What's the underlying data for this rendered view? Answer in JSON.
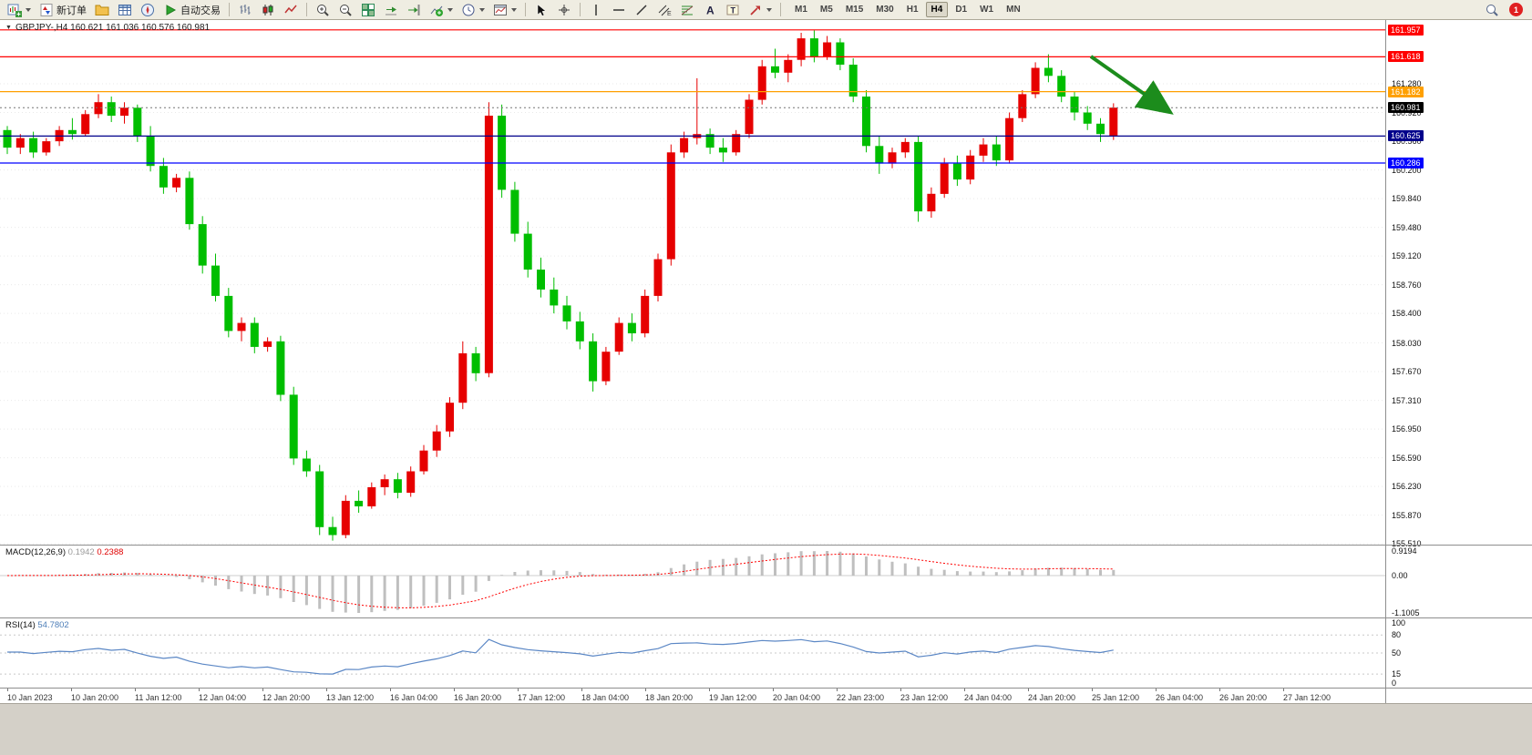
{
  "toolbar": {
    "new_order_label": "新订单",
    "autotrading_label": "自动交易",
    "timeframes": [
      "M1",
      "M5",
      "M15",
      "M30",
      "H1",
      "H4",
      "D1",
      "W1",
      "MN"
    ],
    "active_timeframe": "H4",
    "notification_count": "1",
    "icon_names": [
      "new-chart-icon",
      "new-order-icon",
      "chart-profiles-icon",
      "market-watch-icon",
      "navigator-icon",
      "autotrading-icon",
      "bar-chart-icon",
      "candlestick-chart-icon",
      "line-chart-icon",
      "zoom-in-icon",
      "zoom-out-icon",
      "tile-windows-icon",
      "auto-scroll-icon",
      "chart-shift-icon",
      "indicators-icon",
      "periods-icon",
      "templates-icon",
      "cursor-icon",
      "crosshair-icon",
      "vertical-line-icon",
      "horizontal-line-icon",
      "trendline-icon",
      "equidistant-channel-icon",
      "fibonacci-icon",
      "text-icon",
      "text-label-icon",
      "arrows-icon",
      "search-icon",
      "notification-badge"
    ]
  },
  "chart_data": {
    "type": "candlestick",
    "symbol": "GBPJPY-",
    "timeframe": "H4",
    "window_title": "GBPJPY-,H4 160.621 161.036 160.576 160.981",
    "current_ohlc": {
      "open": "160.621",
      "high": "161.036",
      "low": "160.576",
      "close": "160.981"
    },
    "candle_colors": {
      "bull": "#E60000",
      "bear": "#00BE00"
    },
    "price_axis": {
      "min": 155.5,
      "max": 162.08,
      "ticks": [
        "161.280",
        "160.920",
        "160.560",
        "160.200",
        "159.840",
        "159.480",
        "159.120",
        "158.760",
        "158.400",
        "158.030",
        "157.670",
        "157.310",
        "156.950",
        "156.590",
        "156.230",
        "155.870",
        "155.510"
      ]
    },
    "price_lines": [
      {
        "label": "161.957",
        "color": "#FF0000"
      },
      {
        "label": "161.618",
        "color": "#FF0000"
      },
      {
        "label": "161.182",
        "color": "#FFA000"
      },
      {
        "label": "160.625",
        "color": "#00008B"
      },
      {
        "label": "160.286",
        "color": "#0000FF"
      }
    ],
    "bid_line": {
      "label": "160.981",
      "color": "#000000"
    },
    "annotation_arrow": {
      "color": "#1C8C1C",
      "direction": "down-right"
    },
    "time_axis": [
      "10 Jan 2023",
      "10 Jan 20:00",
      "11 Jan 12:00",
      "12 Jan 04:00",
      "12 Jan 20:00",
      "13 Jan 12:00",
      "16 Jan 04:00",
      "16 Jan 20:00",
      "17 Jan 12:00",
      "18 Jan 04:00",
      "18 Jan 20:00",
      "19 Jan 12:00",
      "20 Jan 04:00",
      "22 Jan 23:00",
      "23 Jan 12:00",
      "24 Jan 04:00",
      "24 Jan 20:00",
      "25 Jan 12:00",
      "26 Jan 04:00",
      "26 Jan 20:00",
      "27 Jan 12:00"
    ],
    "macd": {
      "label": "MACD(12,26,9)",
      "hist_value": "0.1942",
      "signal_value": "0.2388",
      "scale_labels": [
        "0.9194",
        "0.00",
        "-1.1005"
      ],
      "hist_color": "#BFBFBF",
      "signal_color": "#FF0000"
    },
    "rsi": {
      "label": "RSI(14)",
      "value": "54.7802",
      "scale_labels": [
        "100",
        "80",
        "50",
        "15",
        "0"
      ],
      "levels": [
        80,
        50,
        15
      ],
      "line_color": "#5B87C5"
    },
    "candles": [
      [
        160.7,
        160.75,
        160.4,
        160.48
      ],
      [
        160.48,
        160.65,
        160.4,
        160.6
      ],
      [
        160.6,
        160.68,
        160.35,
        160.42
      ],
      [
        160.42,
        160.6,
        160.38,
        160.56
      ],
      [
        160.56,
        160.75,
        160.5,
        160.7
      ],
      [
        160.7,
        160.85,
        160.58,
        160.65
      ],
      [
        160.65,
        160.95,
        160.62,
        160.9
      ],
      [
        160.9,
        161.15,
        160.85,
        161.05
      ],
      [
        161.05,
        161.12,
        160.8,
        160.88
      ],
      [
        160.88,
        161.05,
        160.78,
        160.98
      ],
      [
        160.98,
        161.02,
        160.55,
        160.62
      ],
      [
        160.62,
        160.75,
        160.18,
        160.25
      ],
      [
        160.25,
        160.35,
        159.9,
        159.98
      ],
      [
        159.98,
        160.15,
        159.92,
        160.1
      ],
      [
        160.1,
        160.18,
        159.45,
        159.52
      ],
      [
        159.52,
        159.62,
        158.9,
        159.0
      ],
      [
        159.0,
        159.15,
        158.55,
        158.62
      ],
      [
        158.62,
        158.72,
        158.1,
        158.18
      ],
      [
        158.18,
        158.35,
        158.05,
        158.28
      ],
      [
        158.28,
        158.35,
        157.9,
        157.98
      ],
      [
        157.98,
        158.1,
        157.92,
        158.05
      ],
      [
        158.05,
        158.12,
        157.3,
        157.38
      ],
      [
        157.38,
        157.48,
        156.5,
        156.58
      ],
      [
        156.58,
        156.68,
        156.35,
        156.42
      ],
      [
        156.42,
        156.5,
        155.62,
        155.72
      ],
      [
        155.72,
        155.85,
        155.55,
        155.62
      ],
      [
        155.62,
        156.12,
        155.58,
        156.05
      ],
      [
        156.05,
        156.18,
        155.9,
        155.98
      ],
      [
        155.98,
        156.28,
        155.95,
        156.22
      ],
      [
        156.22,
        156.38,
        156.12,
        156.32
      ],
      [
        156.32,
        156.4,
        156.08,
        156.15
      ],
      [
        156.15,
        156.48,
        156.1,
        156.42
      ],
      [
        156.42,
        156.75,
        156.38,
        156.68
      ],
      [
        156.68,
        157.0,
        156.6,
        156.92
      ],
      [
        156.92,
        157.35,
        156.85,
        157.28
      ],
      [
        157.28,
        158.05,
        157.2,
        157.9
      ],
      [
        157.9,
        157.98,
        157.55,
        157.65
      ],
      [
        157.65,
        161.05,
        157.6,
        160.88
      ],
      [
        160.88,
        161.02,
        159.85,
        159.95
      ],
      [
        159.95,
        160.05,
        159.3,
        159.4
      ],
      [
        159.4,
        159.55,
        158.85,
        158.95
      ],
      [
        158.95,
        159.1,
        158.6,
        158.7
      ],
      [
        158.7,
        158.85,
        158.4,
        158.5
      ],
      [
        158.5,
        158.62,
        158.2,
        158.3
      ],
      [
        158.3,
        158.42,
        157.95,
        158.05
      ],
      [
        158.05,
        158.15,
        157.42,
        157.55
      ],
      [
        157.55,
        157.98,
        157.5,
        157.92
      ],
      [
        157.92,
        158.35,
        157.88,
        158.28
      ],
      [
        158.28,
        158.4,
        158.05,
        158.15
      ],
      [
        158.15,
        158.7,
        158.1,
        158.62
      ],
      [
        158.62,
        159.15,
        158.55,
        159.08
      ],
      [
        159.08,
        160.52,
        159.0,
        160.42
      ],
      [
        160.42,
        160.68,
        160.35,
        160.6
      ],
      [
        160.6,
        161.35,
        160.52,
        160.65
      ],
      [
        160.65,
        160.72,
        160.4,
        160.48
      ],
      [
        160.48,
        160.6,
        160.3,
        160.42
      ],
      [
        160.42,
        160.7,
        160.38,
        160.65
      ],
      [
        160.65,
        161.15,
        160.6,
        161.08
      ],
      [
        161.08,
        161.58,
        161.02,
        161.5
      ],
      [
        161.5,
        161.72,
        161.35,
        161.42
      ],
      [
        161.42,
        161.65,
        161.3,
        161.58
      ],
      [
        161.58,
        161.92,
        161.5,
        161.85
      ],
      [
        161.85,
        161.95,
        161.55,
        161.62
      ],
      [
        161.62,
        161.88,
        161.58,
        161.8
      ],
      [
        161.8,
        161.85,
        161.45,
        161.52
      ],
      [
        161.52,
        161.6,
        161.05,
        161.12
      ],
      [
        161.12,
        161.2,
        160.42,
        160.5
      ],
      [
        160.5,
        160.62,
        160.15,
        160.28
      ],
      [
        160.28,
        160.48,
        160.22,
        160.42
      ],
      [
        160.42,
        160.6,
        160.35,
        160.55
      ],
      [
        160.55,
        160.62,
        159.55,
        159.68
      ],
      [
        159.68,
        159.98,
        159.6,
        159.9
      ],
      [
        159.9,
        160.35,
        159.85,
        160.28
      ],
      [
        160.28,
        160.38,
        160.0,
        160.08
      ],
      [
        160.08,
        160.45,
        160.02,
        160.38
      ],
      [
        160.38,
        160.6,
        160.3,
        160.52
      ],
      [
        160.52,
        160.62,
        160.25,
        160.32
      ],
      [
        160.32,
        160.92,
        160.28,
        160.85
      ],
      [
        160.85,
        161.2,
        160.8,
        161.15
      ],
      [
        161.15,
        161.55,
        161.1,
        161.48
      ],
      [
        161.48,
        161.65,
        161.3,
        161.38
      ],
      [
        161.38,
        161.45,
        161.05,
        161.12
      ],
      [
        161.12,
        161.18,
        160.82,
        160.92
      ],
      [
        160.92,
        161.0,
        160.7,
        160.78
      ],
      [
        160.78,
        160.85,
        160.55,
        160.65
      ],
      [
        160.621,
        161.036,
        160.576,
        160.981
      ]
    ]
  }
}
